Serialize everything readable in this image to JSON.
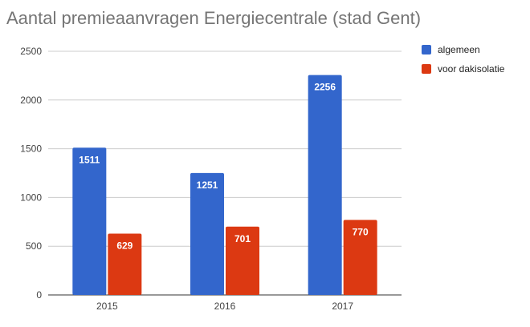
{
  "chart_data": {
    "type": "bar",
    "title": "Aantal premieaanvragen Energiecentrale (stad Gent)",
    "xlabel": "",
    "ylabel": "",
    "categories": [
      "2015",
      "2016",
      "2017"
    ],
    "series": [
      {
        "name": "algemeen",
        "values": [
          1511,
          1251,
          2256
        ],
        "color": "#3366cc"
      },
      {
        "name": "voor dakisolatie",
        "values": [
          629,
          701,
          770
        ],
        "color": "#dc3912"
      }
    ],
    "ylim": [
      0,
      2500
    ],
    "yticks": [
      0,
      500,
      1000,
      1500,
      2000,
      2500
    ],
    "grid": true,
    "legend_position": "right"
  }
}
